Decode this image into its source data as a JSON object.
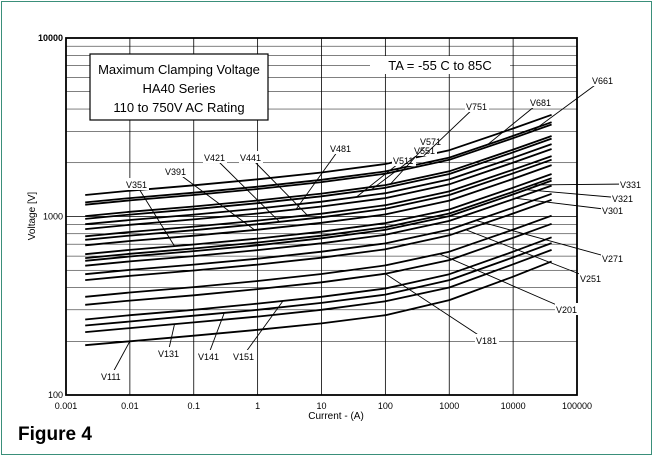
{
  "figure_label": "Figure 4",
  "chart_data": {
    "type": "line",
    "title_lines": [
      "Maximum Clamping Voltage",
      "HA40  Series",
      "110 to 750V AC Rating"
    ],
    "condition": "TA = -55 C to 85C",
    "xlabel": "Current  - (A)",
    "ylabel": "Voltage [V]",
    "x_scale": "log",
    "y_scale": "log",
    "xlim": [
      0.001,
      100000
    ],
    "ylim": [
      100,
      10000
    ],
    "x_ticks": [
      "0.001",
      "0.01",
      "0.1",
      "1",
      "10",
      "100",
      "1000",
      "10000",
      "100000"
    ],
    "y_ticks": [
      "100",
      "1000",
      "10000"
    ],
    "grid": true,
    "curve_points_x": [
      0.002,
      0.01,
      0.1,
      1,
      10,
      100,
      1000,
      10000,
      40000
    ],
    "series": [
      {
        "name": "V111",
        "values": [
          190,
          200,
          215,
          232,
          252,
          280,
          340,
          460,
          560
        ]
      },
      {
        "name": "V131",
        "values": [
          225,
          237,
          255,
          275,
          300,
          335,
          400,
          540,
          650
        ]
      },
      {
        "name": "V141",
        "values": [
          245,
          258,
          278,
          300,
          328,
          365,
          440,
          590,
          710
        ]
      },
      {
        "name": "V151",
        "values": [
          265,
          280,
          300,
          325,
          355,
          395,
          475,
          635,
          765
        ]
      },
      {
        "name": "V181",
        "values": [
          320,
          338,
          362,
          392,
          428,
          478,
          570,
          760,
          910
        ]
      },
      {
        "name": "V201",
        "values": [
          355,
          375,
          402,
          435,
          476,
          532,
          635,
          845,
          1010
        ]
      },
      {
        "name": "V251",
        "values": [
          440,
          465,
          498,
          538,
          588,
          655,
          785,
          1040,
          1240
        ]
      },
      {
        "name": "V271",
        "values": [
          475,
          502,
          538,
          580,
          635,
          707,
          845,
          1120,
          1340
        ]
      },
      {
        "name": "V301",
        "values": [
          530,
          560,
          600,
          648,
          708,
          790,
          945,
          1250,
          1490
        ]
      },
      {
        "name": "V321",
        "values": [
          565,
          597,
          640,
          690,
          755,
          842,
          1005,
          1330,
          1590
        ]
      },
      {
        "name": "V331",
        "values": [
          585,
          618,
          662,
          715,
          781,
          871,
          1040,
          1375,
          1640
        ]
      },
      {
        "name": "V351",
        "values": [
          615,
          650,
          697,
          752,
          822,
          918,
          1095,
          1450,
          1730
        ]
      },
      {
        "name": "V391",
        "values": [
          690,
          729,
          781,
          843,
          922,
          1028,
          1228,
          1625,
          1940
        ]
      },
      {
        "name": "V421",
        "values": [
          740,
          782,
          838,
          905,
          990,
          1105,
          1320,
          1745,
          2080
        ]
      },
      {
        "name": "V441",
        "values": [
          775,
          819,
          878,
          948,
          1037,
          1157,
          1382,
          1828,
          2180
        ]
      },
      {
        "name": "V481",
        "values": [
          850,
          898,
          963,
          1040,
          1137,
          1268,
          1515,
          2004,
          2390
        ]
      },
      {
        "name": "V511",
        "values": [
          905,
          956,
          1025,
          1107,
          1210,
          1350,
          1613,
          2133,
          2545
        ]
      },
      {
        "name": "V551",
        "values": [
          970,
          1025,
          1099,
          1187,
          1298,
          1448,
          1730,
          2288,
          2730
        ]
      },
      {
        "name": "V571",
        "values": [
          1005,
          1062,
          1138,
          1229,
          1344,
          1499,
          1791,
          2369,
          2826
        ]
      },
      {
        "name": "V681",
        "values": [
          1200,
          1268,
          1359,
          1468,
          1605,
          1790,
          2139,
          2829,
          3375
        ]
      },
      {
        "name": "V751",
        "values": [
          1320,
          1395,
          1495,
          1615,
          1765,
          1969,
          2353,
          3112,
          3712
        ]
      },
      {
        "name": "V661",
        "values": [
          1165,
          1231,
          1320,
          1425,
          1558,
          1738,
          2077,
          2747,
          3277
        ]
      }
    ]
  }
}
